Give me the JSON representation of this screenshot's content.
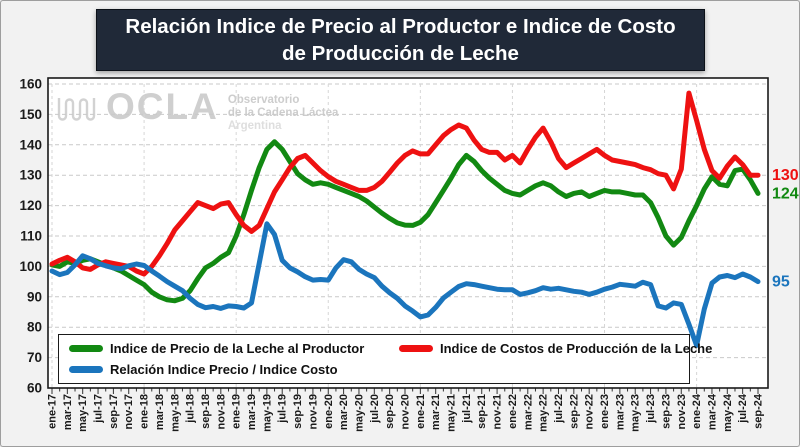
{
  "title": {
    "line1": "Relación Indice de Precio al Productor e Indice de Costo",
    "line2": "de Producción de Leche"
  },
  "watermark": {
    "logo": "OCLA",
    "sub1": "Observatorio",
    "sub2": "de la Cadena Láctea",
    "sub3": "Argentina"
  },
  "chart_data": {
    "type": "line",
    "title": "Relación Indice de Precio al Productor e Indice de Costo de Producción de Leche",
    "ylim": [
      60,
      160
    ],
    "ytick_step": 10,
    "grid": "dashed horizontal every 10, dashed vertical at each January",
    "legend_position": "bottom-left inside plot",
    "x_tick_labels": [
      "ene-17",
      "mar-17",
      "may-17",
      "jul-17",
      "sep-17",
      "nov-17",
      "ene-18",
      "mar-18",
      "may-18",
      "jul-18",
      "sep-18",
      "nov-18",
      "ene-19",
      "mar-19",
      "may-19",
      "jul-19",
      "sep-19",
      "nov-19",
      "ene-20",
      "mar-20",
      "may-20",
      "jul-20",
      "sep-20",
      "nov-20",
      "ene-21",
      "mar-21",
      "may-21",
      "jul-21",
      "sep-21",
      "nov-21",
      "ene-22",
      "mar-22",
      "may-22",
      "jul-22",
      "sep-22",
      "nov-22",
      "ene-23",
      "mar-23",
      "may-23",
      "jul-23",
      "sep-23",
      "nov-23",
      "ene-24",
      "mar-24",
      "may-24",
      "jul-24",
      "sep-24"
    ],
    "months_per_tick": 2,
    "series": [
      {
        "name": "Indice de Precio de la Leche al Productor",
        "color": "#128912",
        "end_label": "124",
        "values": [
          100.5,
          100,
          101.5,
          101,
          102,
          102.5,
          101.5,
          100.5,
          99.5,
          98.5,
          97,
          95.5,
          94,
          91.5,
          90,
          89,
          88.7,
          89.5,
          92,
          96,
          99.5,
          101,
          103,
          104.5,
          110,
          117,
          125,
          132.5,
          138.5,
          141,
          138.5,
          134.5,
          130.5,
          128.5,
          127,
          127.5,
          127,
          126,
          125,
          124,
          123,
          121.5,
          119.5,
          117.5,
          115.8,
          114.3,
          113.6,
          113.5,
          114.5,
          117,
          121,
          125,
          129,
          133.5,
          136.5,
          134.5,
          131.5,
          129,
          127,
          125,
          124,
          123.5,
          125,
          126.5,
          127.5,
          126.5,
          124.5,
          123,
          124,
          124.5,
          123,
          124,
          125,
          124.5,
          124.5,
          124,
          123.5,
          123.5,
          121,
          116,
          110,
          107,
          109.5,
          115,
          120,
          125.5,
          129.5,
          127,
          126.5,
          131.5,
          132,
          128.5,
          124
        ]
      },
      {
        "name": "Indice de Costos de Producción de la Leche",
        "color": "#ee1111",
        "end_label": "130",
        "values": [
          100.8,
          102,
          103,
          101.5,
          99.5,
          99,
          100.5,
          101.5,
          101,
          100.5,
          100,
          98.5,
          97.5,
          100,
          103.5,
          107.5,
          112,
          115,
          118,
          121,
          120,
          119,
          120.5,
          121,
          117,
          113.5,
          111.5,
          113.5,
          119,
          124.5,
          128.5,
          132.5,
          135.5,
          136.5,
          134,
          131.5,
          129.5,
          128,
          127,
          126,
          125,
          125,
          126,
          128,
          131,
          134,
          136.5,
          138,
          137,
          137,
          140,
          143,
          145,
          146.5,
          145.5,
          141.5,
          138.5,
          137.5,
          137.5,
          135,
          136.5,
          134,
          138.5,
          142.5,
          145.5,
          141,
          135.5,
          132.5,
          134,
          135.5,
          137,
          138.5,
          136.5,
          135,
          134.5,
          134,
          133.5,
          132.5,
          131.8,
          130.5,
          130,
          125.5,
          132,
          157,
          148,
          138.5,
          131.5,
          129,
          133,
          136,
          133.5,
          130,
          130
        ]
      },
      {
        "name": "Relación Indice Precio / Indice Costo",
        "color": "#1b75bd",
        "end_label": "95",
        "values": [
          98.5,
          97.3,
          98,
          100.5,
          103.5,
          102.5,
          101,
          100.2,
          99.5,
          99.2,
          100.2,
          100.8,
          100.3,
          98.5,
          96.8,
          95,
          93.5,
          92,
          89.5,
          87.5,
          86.4,
          86.8,
          86.2,
          87,
          86.8,
          86.3,
          88,
          101,
          114,
          110.5,
          102,
          99.5,
          98.2,
          96.6,
          95.5,
          95.7,
          95.5,
          99.5,
          102.2,
          101.5,
          99,
          97.5,
          96.3,
          93.5,
          91.3,
          89.5,
          87,
          85.3,
          83.4,
          84,
          86.5,
          89.6,
          91.5,
          93.4,
          94.3,
          94,
          93.5,
          93,
          92.5,
          92.3,
          92.3,
          90.8,
          91.3,
          92,
          93,
          92.5,
          92.8,
          92.3,
          91.8,
          91.5,
          90.8,
          91.5,
          92.5,
          93.2,
          94.1,
          93.8,
          93.5,
          94.8,
          94,
          87,
          86.3,
          88,
          87.5,
          81,
          74,
          86,
          94.5,
          96.5,
          97,
          96.3,
          97.5,
          96.5,
          95
        ]
      }
    ]
  }
}
